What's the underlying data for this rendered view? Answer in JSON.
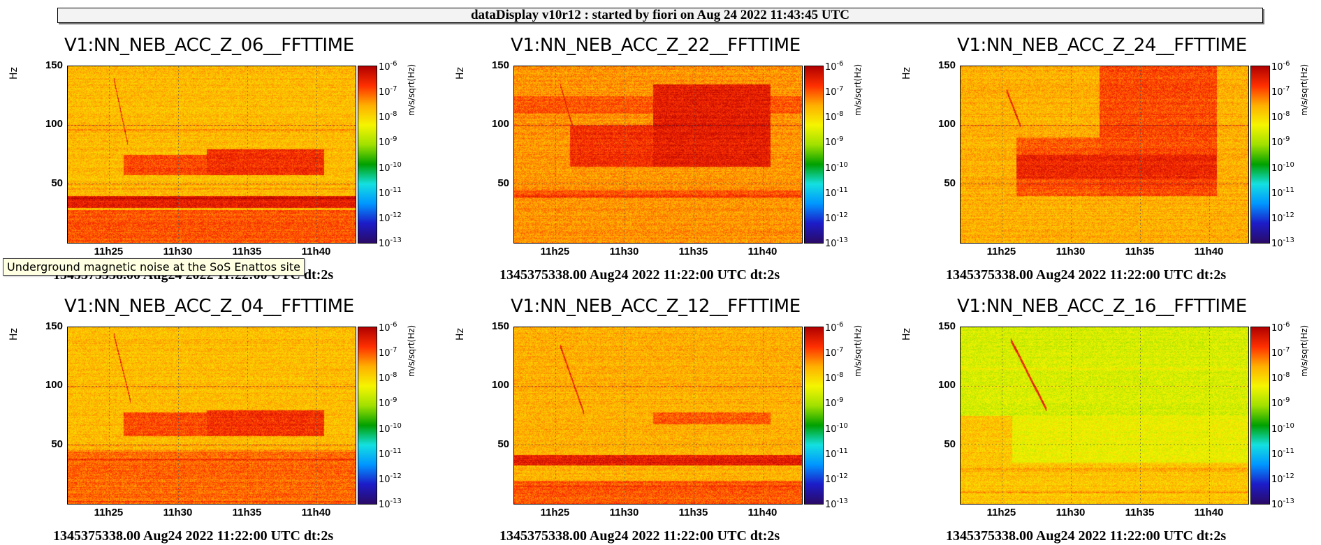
{
  "window": {
    "header": "dataDisplay v10r12 : started by fiori on Aug 24 2022 11:43:45 UTC",
    "tooltip": "Underground magnetic noise at the SoS Enattos site"
  },
  "colorbar": {
    "base": "10",
    "exponents": [
      "-6",
      "-7",
      "-8",
      "-9",
      "-10",
      "-11",
      "-12",
      "-13"
    ],
    "unit": "m/s/sqrt(Hz)",
    "stops": [
      "#2a0a66",
      "#1c1cc8",
      "#0096ff",
      "#14e0e0",
      "#00a000",
      "#a0e000",
      "#f5f500",
      "#ffb000",
      "#ff3000",
      "#b00000"
    ]
  },
  "chart_data": [
    {
      "type": "heatmap",
      "title": "V1:NN_NEB_ACC_Z_06__FFTTIME",
      "ylabel": "Hz",
      "caption": "1345375338.00 Aug24 2022 11:22:00 UTC dt:2s",
      "yticks": [
        "150",
        "100",
        "50"
      ],
      "xticks": [
        "11h25",
        "11h30",
        "11h35",
        "11h40"
      ],
      "xlim_min": [
        22,
        42.8
      ],
      "ylim_hz": [
        0,
        150
      ],
      "zlim_log10": [
        -13,
        -6
      ],
      "background_log10": -7.7,
      "bands": [
        {
          "t": [
            22,
            42.8
          ],
          "f": [
            30,
            40
          ],
          "level_log10": -6.5
        },
        {
          "t": [
            22,
            42.8
          ],
          "f": [
            0,
            28
          ],
          "level_log10": -7.0
        },
        {
          "t": [
            26,
            40.5
          ],
          "f": [
            58,
            75
          ],
          "level_log10": -6.9
        },
        {
          "t": [
            32,
            40.5
          ],
          "f": [
            58,
            80
          ],
          "level_log10": -6.7
        }
      ],
      "lines_hz": [
        38,
        46,
        50,
        96,
        100
      ],
      "chirp": {
        "t": [
          25.3,
          26.3
        ],
        "f": [
          140,
          85
        ]
      }
    },
    {
      "type": "heatmap",
      "title": "V1:NN_NEB_ACC_Z_22__FFTTIME",
      "ylabel": "Hz",
      "caption": "1345375338.00 Aug24 2022 11:22:00 UTC dt:2s",
      "yticks": [
        "150",
        "100",
        "50"
      ],
      "xticks": [
        "11h25",
        "11h30",
        "11h35",
        "11h40"
      ],
      "xlim_min": [
        22,
        42.8
      ],
      "ylim_hz": [
        0,
        150
      ],
      "zlim_log10": [
        -13,
        -6
      ],
      "background_log10": -7.4,
      "bands": [
        {
          "t": [
            22,
            42.8
          ],
          "f": [
            110,
            125
          ],
          "level_log10": -7.0
        },
        {
          "t": [
            22,
            42.8
          ],
          "f": [
            38,
            45
          ],
          "level_log10": -7.0
        },
        {
          "t": [
            26,
            40.5
          ],
          "f": [
            65,
            100
          ],
          "level_log10": -6.7
        },
        {
          "t": [
            32,
            40.5
          ],
          "f": [
            65,
            135
          ],
          "level_log10": -6.5
        }
      ],
      "lines_hz": [
        40,
        100
      ],
      "chirp": {
        "t": [
          25.3,
          26.8
        ],
        "f": [
          135,
          75
        ]
      }
    },
    {
      "type": "heatmap",
      "title": "V1:NN_NEB_ACC_Z_24__FFTTIME",
      "ylabel": "Hz",
      "caption": "1345375338.00 Aug24 2022 11:22:00 UTC dt:2s",
      "yticks": [
        "150",
        "100",
        "50"
      ],
      "xticks": [
        "11h25",
        "11h30",
        "11h35",
        "11h40"
      ],
      "xlim_min": [
        22,
        42.8
      ],
      "ylim_hz": [
        0,
        150
      ],
      "zlim_log10": [
        -13,
        -6
      ],
      "background_log10": -7.6,
      "bands": [
        {
          "t": [
            26,
            40.5
          ],
          "f": [
            40,
            90
          ],
          "level_log10": -7.0
        },
        {
          "t": [
            32,
            40.5
          ],
          "f": [
            40,
            150
          ],
          "level_log10": -6.9
        },
        {
          "t": [
            26,
            40.5
          ],
          "f": [
            55,
            75
          ],
          "level_log10": -6.6
        }
      ],
      "lines_hz": [
        50,
        100
      ],
      "chirp": {
        "t": [
          25.3,
          26.3
        ],
        "f": [
          130,
          100
        ]
      }
    },
    {
      "type": "heatmap",
      "title": "V1:NN_NEB_ACC_Z_04__FFTTIME",
      "ylabel": "Hz",
      "caption": "1345375338.00 Aug24 2022 11:22:00 UTC dt:2s",
      "yticks": [
        "150",
        "100",
        "50"
      ],
      "xticks": [
        "11h25",
        "11h30",
        "11h35",
        "11h40"
      ],
      "xlim_min": [
        22,
        42.8
      ],
      "ylim_hz": [
        0,
        150
      ],
      "zlim_log10": [
        -13,
        -6
      ],
      "background_log10": -7.7,
      "bands": [
        {
          "t": [
            22,
            42.8
          ],
          "f": [
            0,
            45
          ],
          "level_log10": -7.1
        },
        {
          "t": [
            26,
            40.5
          ],
          "f": [
            58,
            78
          ],
          "level_log10": -6.9
        },
        {
          "t": [
            32,
            40.5
          ],
          "f": [
            58,
            80
          ],
          "level_log10": -6.7
        }
      ],
      "lines_hz": [
        2,
        38,
        46,
        50,
        100
      ],
      "chirp": {
        "t": [
          25.3,
          26.5
        ],
        "f": [
          145,
          88
        ]
      }
    },
    {
      "type": "heatmap",
      "title": "V1:NN_NEB_ACC_Z_12__FFTTIME",
      "ylabel": "Hz",
      "caption": "1345375338.00 Aug24 2022 11:22:00 UTC dt:2s",
      "yticks": [
        "150",
        "100",
        "50"
      ],
      "xticks": [
        "11h25",
        "11h30",
        "11h35",
        "11h40"
      ],
      "xlim_min": [
        22,
        42.8
      ],
      "ylim_hz": [
        0,
        150
      ],
      "zlim_log10": [
        -13,
        -6
      ],
      "background_log10": -7.6,
      "bands": [
        {
          "t": [
            22,
            42.8
          ],
          "f": [
            33,
            42
          ],
          "level_log10": -6.5
        },
        {
          "t": [
            22,
            42.8
          ],
          "f": [
            0,
            20
          ],
          "level_log10": -7.0
        },
        {
          "t": [
            32,
            40.5
          ],
          "f": [
            68,
            78
          ],
          "level_log10": -7.0
        }
      ],
      "lines_hz": [
        15,
        100
      ],
      "chirp": {
        "t": [
          25.3,
          27.0
        ],
        "f": [
          135,
          78
        ]
      }
    },
    {
      "type": "heatmap",
      "title": "V1:NN_NEB_ACC_Z_16__FFTTIME",
      "ylabel": "Hz",
      "caption": "1345375338.00 Aug24 2022 11:22:00 UTC dt:2s",
      "yticks": [
        "150",
        "100",
        "50"
      ],
      "xticks": [
        "11h25",
        "11h30",
        "11h35",
        "11h40"
      ],
      "xlim_min": [
        22,
        42.8
      ],
      "ylim_hz": [
        0,
        150
      ],
      "zlim_log10": [
        -13,
        -6
      ],
      "background_log10": -8.6,
      "bands": [
        {
          "t": [
            22,
            42.8
          ],
          "f": [
            0,
            75
          ],
          "level_log10": -7.8
        },
        {
          "t": [
            25.7,
            42.8
          ],
          "f": [
            35,
            75
          ],
          "level_log10": -8.4
        }
      ],
      "lines_hz": [
        10,
        28,
        30,
        100,
        115
      ],
      "chirp": {
        "t": [
          25.6,
          28.2
        ],
        "f": [
          140,
          80
        ]
      }
    }
  ]
}
